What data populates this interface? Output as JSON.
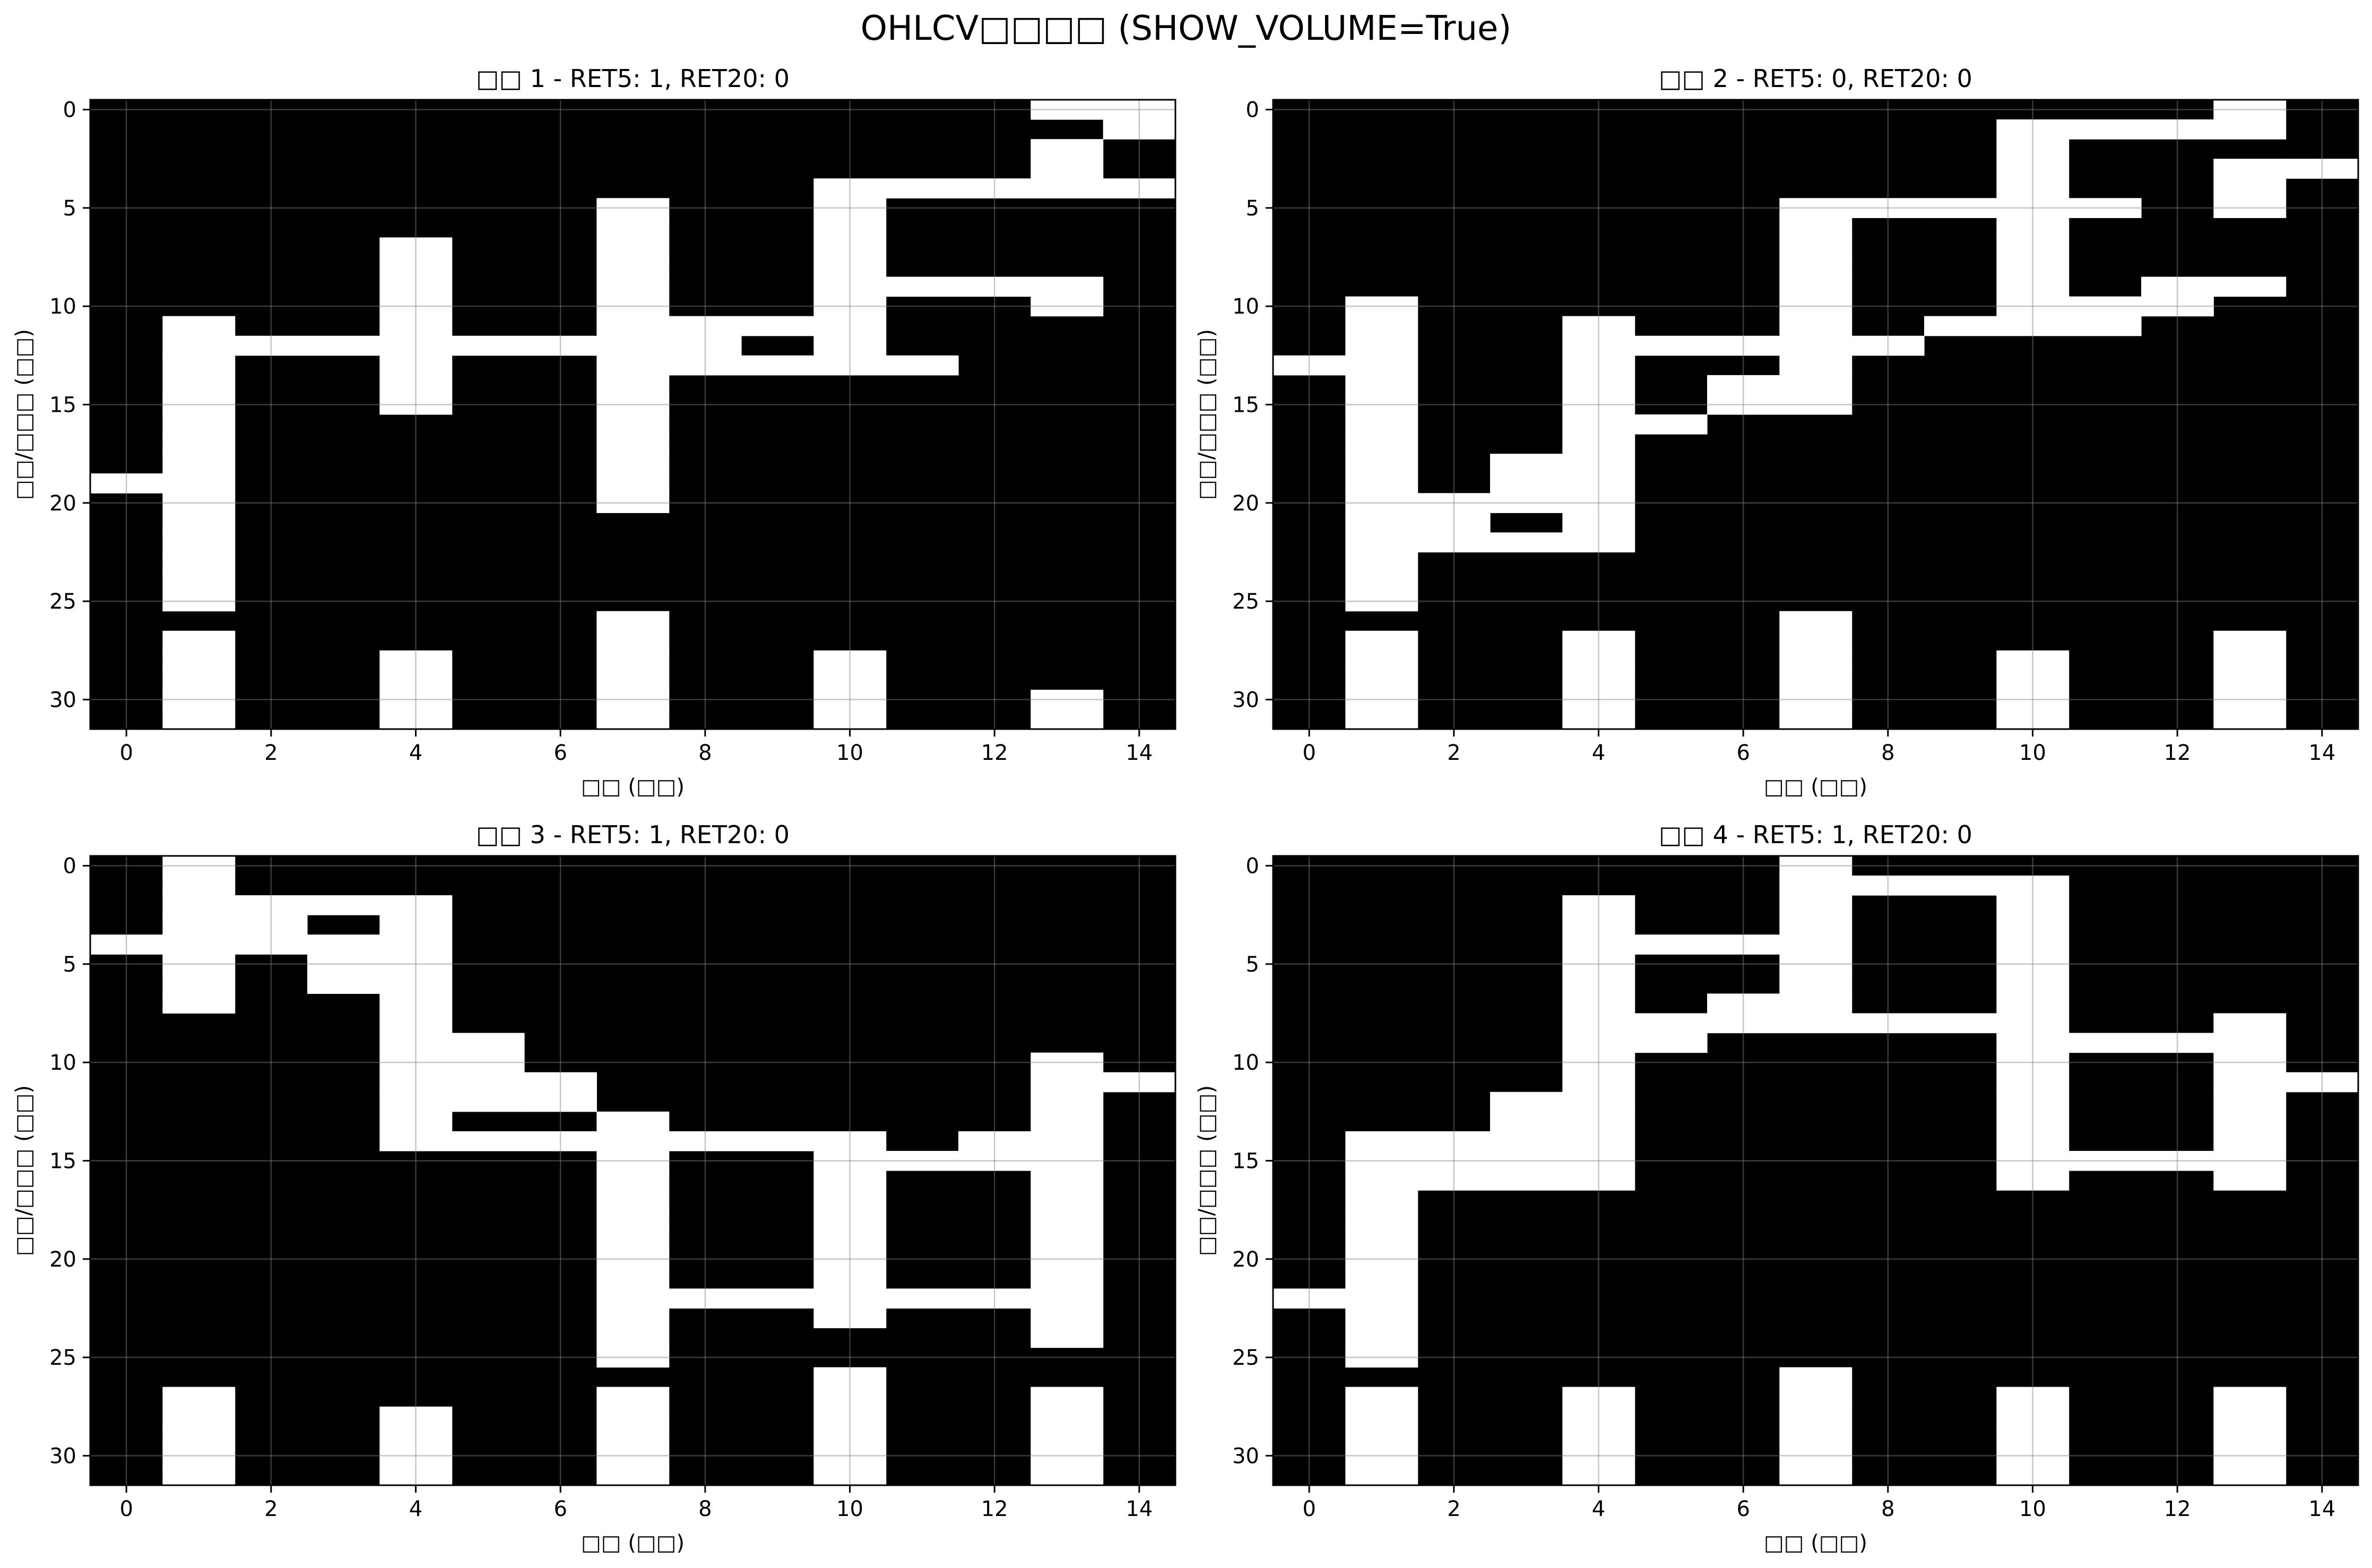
{
  "suptitle": "OHLCV□□□□ (SHOW_VOLUME=True)",
  "colors": {
    "on": "#ffffff",
    "off": "#000000",
    "grid": "#808080"
  },
  "chart_data": [
    {
      "type": "heatmap",
      "title": "□□ 1 - RET5: 1, RET20: 0",
      "xlabel": "□□ (□□)",
      "ylabel": "□□/□□□ (□□)",
      "xlim": [
        -0.5,
        14.5
      ],
      "ylim": [
        31.5,
        -0.5
      ],
      "xticks": [
        0,
        2,
        4,
        6,
        8,
        10,
        12,
        14
      ],
      "yticks": [
        0,
        5,
        10,
        15,
        20,
        25,
        30
      ],
      "grid": true,
      "rows": [
        "000000000000011",
        "000000000000001",
        "000000000000010",
        "000000000000010",
        "000000000011111",
        "000000010010000",
        "000000010010000",
        "000010010010000",
        "000010010010000",
        "000010010011110",
        "000010010010010",
        "010010011110000",
        "011111111010000",
        "010010011111000",
        "010010010000000",
        "010010010000000",
        "010000010000000",
        "010000010000000",
        "010000010000000",
        "110000010000000",
        "010000010000000",
        "010000000000000",
        "010000000000000",
        "010000000000000",
        "010000000000000",
        "010000000000000",
        "000000010000000",
        "010000010000000",
        "010010010010000",
        "010010010010000",
        "010010010010010",
        "010010010010010"
      ]
    },
    {
      "type": "heatmap",
      "title": "□□ 2 - RET5: 0, RET20: 0",
      "xlabel": "□□ (□□)",
      "ylabel": "□□/□□□ (□□)",
      "xlim": [
        -0.5,
        14.5
      ],
      "ylim": [
        31.5,
        -0.5
      ],
      "xticks": [
        0,
        2,
        4,
        6,
        8,
        10,
        12,
        14
      ],
      "yticks": [
        0,
        5,
        10,
        15,
        20,
        25,
        30
      ],
      "grid": true,
      "rows": [
        "000000000000010",
        "000000000011110",
        "000000000010000",
        "000000000010011",
        "000000000010010",
        "000000011111010",
        "000000010010000",
        "000000010010000",
        "000000010010000",
        "000000010010110",
        "010000010011100",
        "010010010111000",
        "010011111000000",
        "110010010000000",
        "010010110000000",
        "010010110000000",
        "010011000000000",
        "010010000000000",
        "010110000000000",
        "010110000000000",
        "011110000000000",
        "011010000000000",
        "011110000000000",
        "010000000000000",
        "010000000000000",
        "010000000000000",
        "000000010000000",
        "010010010000010",
        "010010010010010",
        "010010010010010",
        "010010010010010",
        "010010010010010"
      ]
    },
    {
      "type": "heatmap",
      "title": "□□ 3 - RET5: 1, RET20: 0",
      "xlabel": "□□ (□□)",
      "ylabel": "□□/□□□ (□□)",
      "xlim": [
        -0.5,
        14.5
      ],
      "ylim": [
        31.5,
        -0.5
      ],
      "xticks": [
        0,
        2,
        4,
        6,
        8,
        10,
        12,
        14
      ],
      "yticks": [
        0,
        5,
        10,
        15,
        20,
        25,
        30
      ],
      "grid": true,
      "rows": [
        "010000000000000",
        "010000000000000",
        "011110000000000",
        "011010000000000",
        "111110000000000",
        "010110000000000",
        "010110000000000",
        "010010000000000",
        "000010000000000",
        "000011000000000",
        "000011000000010",
        "000011100000011",
        "000011100000010",
        "000010010000010",
        "000011111110110",
        "000000010011110",
        "000000010010010",
        "000000010010010",
        "000000010010010",
        "000000010010010",
        "000000010010010",
        "000000010010010",
        "000000011111110",
        "000000010010010",
        "000000010000010",
        "000000010000000",
        "000000000010000",
        "010000010010010",
        "010010010010010",
        "010010010010010",
        "010010010010010",
        "010010010010010"
      ]
    },
    {
      "type": "heatmap",
      "title": "□□ 4 - RET5: 1, RET20: 0",
      "xlabel": "□□ (□□)",
      "ylabel": "□□/□□□ (□□)",
      "xlim": [
        -0.5,
        14.5
      ],
      "ylim": [
        31.5,
        -0.5
      ],
      "xticks": [
        0,
        2,
        4,
        6,
        8,
        10,
        12,
        14
      ],
      "yticks": [
        0,
        5,
        10,
        15,
        20,
        25,
        30
      ],
      "grid": true,
      "rows": [
        "000000010000000",
        "000000011110000",
        "000010010010000",
        "000010010010000",
        "000011110010000",
        "000010010010000",
        "000010010010000",
        "000010110010000",
        "000011111110010",
        "000011000011110",
        "000010000010010",
        "000010000010011",
        "000110000010010",
        "000110000010010",
        "011110000010010",
        "011110000011110",
        "011110000010010",
        "010000000000000",
        "010000000000000",
        "010000000000000",
        "010000000000000",
        "010000000000000",
        "110000000000000",
        "010000000000000",
        "010000000000000",
        "010000000000000",
        "000000010000000",
        "010010010010010",
        "010010010010010",
        "010010010010010",
        "010010010010010",
        "010010010010010"
      ]
    }
  ]
}
